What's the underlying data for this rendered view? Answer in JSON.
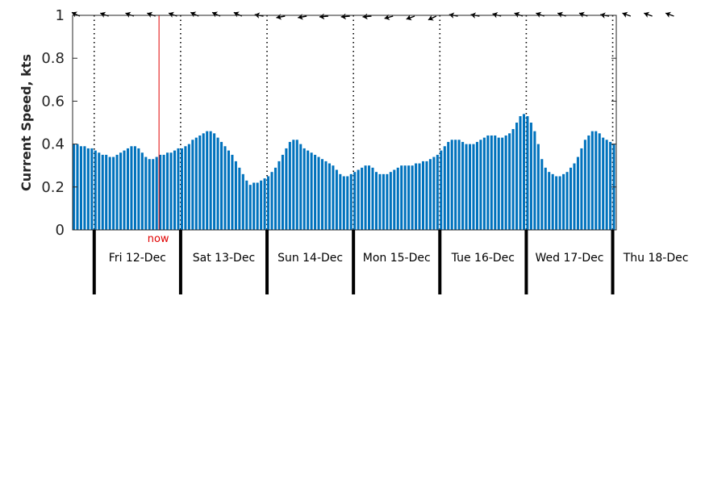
{
  "chart_data": {
    "type": "bar",
    "ylabel": "Current Speed, kts",
    "ylim": [
      0,
      1
    ],
    "yticks": [
      "0",
      "0.2",
      "0.4",
      "0.6",
      "0.8",
      "1"
    ],
    "bar_color": "#0072bd",
    "now_color": "#e00000",
    "now_label": "now",
    "now_hour": 24,
    "day_labels": [
      "Fri 12-Dec",
      "Sat 13-Dec",
      "Sun 14-Dec",
      "Mon 15-Dec",
      "Tue 16-Dec",
      "Wed 17-Dec",
      "Thu 18-Dec"
    ],
    "day_start_hours": [
      6,
      30,
      54,
      78,
      102,
      126,
      150
    ],
    "hour_step": 1,
    "values": [
      0.4,
      0.4,
      0.39,
      0.39,
      0.38,
      0.38,
      0.37,
      0.36,
      0.35,
      0.35,
      0.34,
      0.34,
      0.35,
      0.36,
      0.37,
      0.38,
      0.39,
      0.39,
      0.38,
      0.36,
      0.34,
      0.33,
      0.33,
      0.34,
      0.35,
      0.35,
      0.36,
      0.36,
      0.37,
      0.38,
      0.38,
      0.39,
      0.4,
      0.42,
      0.43,
      0.44,
      0.45,
      0.46,
      0.46,
      0.45,
      0.43,
      0.41,
      0.39,
      0.37,
      0.35,
      0.32,
      0.29,
      0.26,
      0.23,
      0.21,
      0.22,
      0.22,
      0.23,
      0.24,
      0.25,
      0.27,
      0.29,
      0.32,
      0.35,
      0.38,
      0.41,
      0.42,
      0.42,
      0.4,
      0.38,
      0.37,
      0.36,
      0.35,
      0.34,
      0.33,
      0.32,
      0.31,
      0.3,
      0.28,
      0.26,
      0.25,
      0.25,
      0.26,
      0.27,
      0.28,
      0.29,
      0.3,
      0.3,
      0.29,
      0.27,
      0.26,
      0.26,
      0.26,
      0.27,
      0.28,
      0.29,
      0.3,
      0.3,
      0.3,
      0.3,
      0.31,
      0.31,
      0.32,
      0.32,
      0.33,
      0.34,
      0.35,
      0.37,
      0.39,
      0.41,
      0.42,
      0.42,
      0.42,
      0.41,
      0.4,
      0.4,
      0.4,
      0.41,
      0.42,
      0.43,
      0.44,
      0.44,
      0.44,
      0.43,
      0.43,
      0.44,
      0.45,
      0.47,
      0.5,
      0.53,
      0.54,
      0.53,
      0.5,
      0.46,
      0.4,
      0.33,
      0.29,
      0.27,
      0.26,
      0.25,
      0.25,
      0.26,
      0.27,
      0.29,
      0.31,
      0.34,
      0.38,
      0.42,
      0.44,
      0.46,
      0.46,
      0.45,
      0.43,
      0.42,
      0.41,
      0.4
    ],
    "direction_arrows": [
      {
        "hour": 2,
        "angle_deg": 205
      },
      {
        "hour": 10,
        "angle_deg": 200
      },
      {
        "hour": 17,
        "angle_deg": 200
      },
      {
        "hour": 23,
        "angle_deg": 200
      },
      {
        "hour": 29,
        "angle_deg": 200
      },
      {
        "hour": 35,
        "angle_deg": 205
      },
      {
        "hour": 41,
        "angle_deg": 205
      },
      {
        "hour": 47,
        "angle_deg": 205
      },
      {
        "hour": 53,
        "angle_deg": 190
      },
      {
        "hour": 59,
        "angle_deg": 170
      },
      {
        "hour": 65,
        "angle_deg": 170
      },
      {
        "hour": 71,
        "angle_deg": 175
      },
      {
        "hour": 77,
        "angle_deg": 175
      },
      {
        "hour": 83,
        "angle_deg": 175
      },
      {
        "hour": 89,
        "angle_deg": 165
      },
      {
        "hour": 95,
        "angle_deg": 160
      },
      {
        "hour": 101,
        "angle_deg": 155
      },
      {
        "hour": 107,
        "angle_deg": 190
      },
      {
        "hour": 113,
        "angle_deg": 190
      },
      {
        "hour": 119,
        "angle_deg": 195
      },
      {
        "hour": 125,
        "angle_deg": 200
      },
      {
        "hour": 131,
        "angle_deg": 200
      },
      {
        "hour": 137,
        "angle_deg": 200
      },
      {
        "hour": 143,
        "angle_deg": 200
      },
      {
        "hour": 149,
        "angle_deg": 190
      },
      {
        "hour": 155,
        "angle_deg": 200
      },
      {
        "hour": 161,
        "angle_deg": 200
      },
      {
        "hour": 167,
        "angle_deg": 200
      }
    ]
  }
}
